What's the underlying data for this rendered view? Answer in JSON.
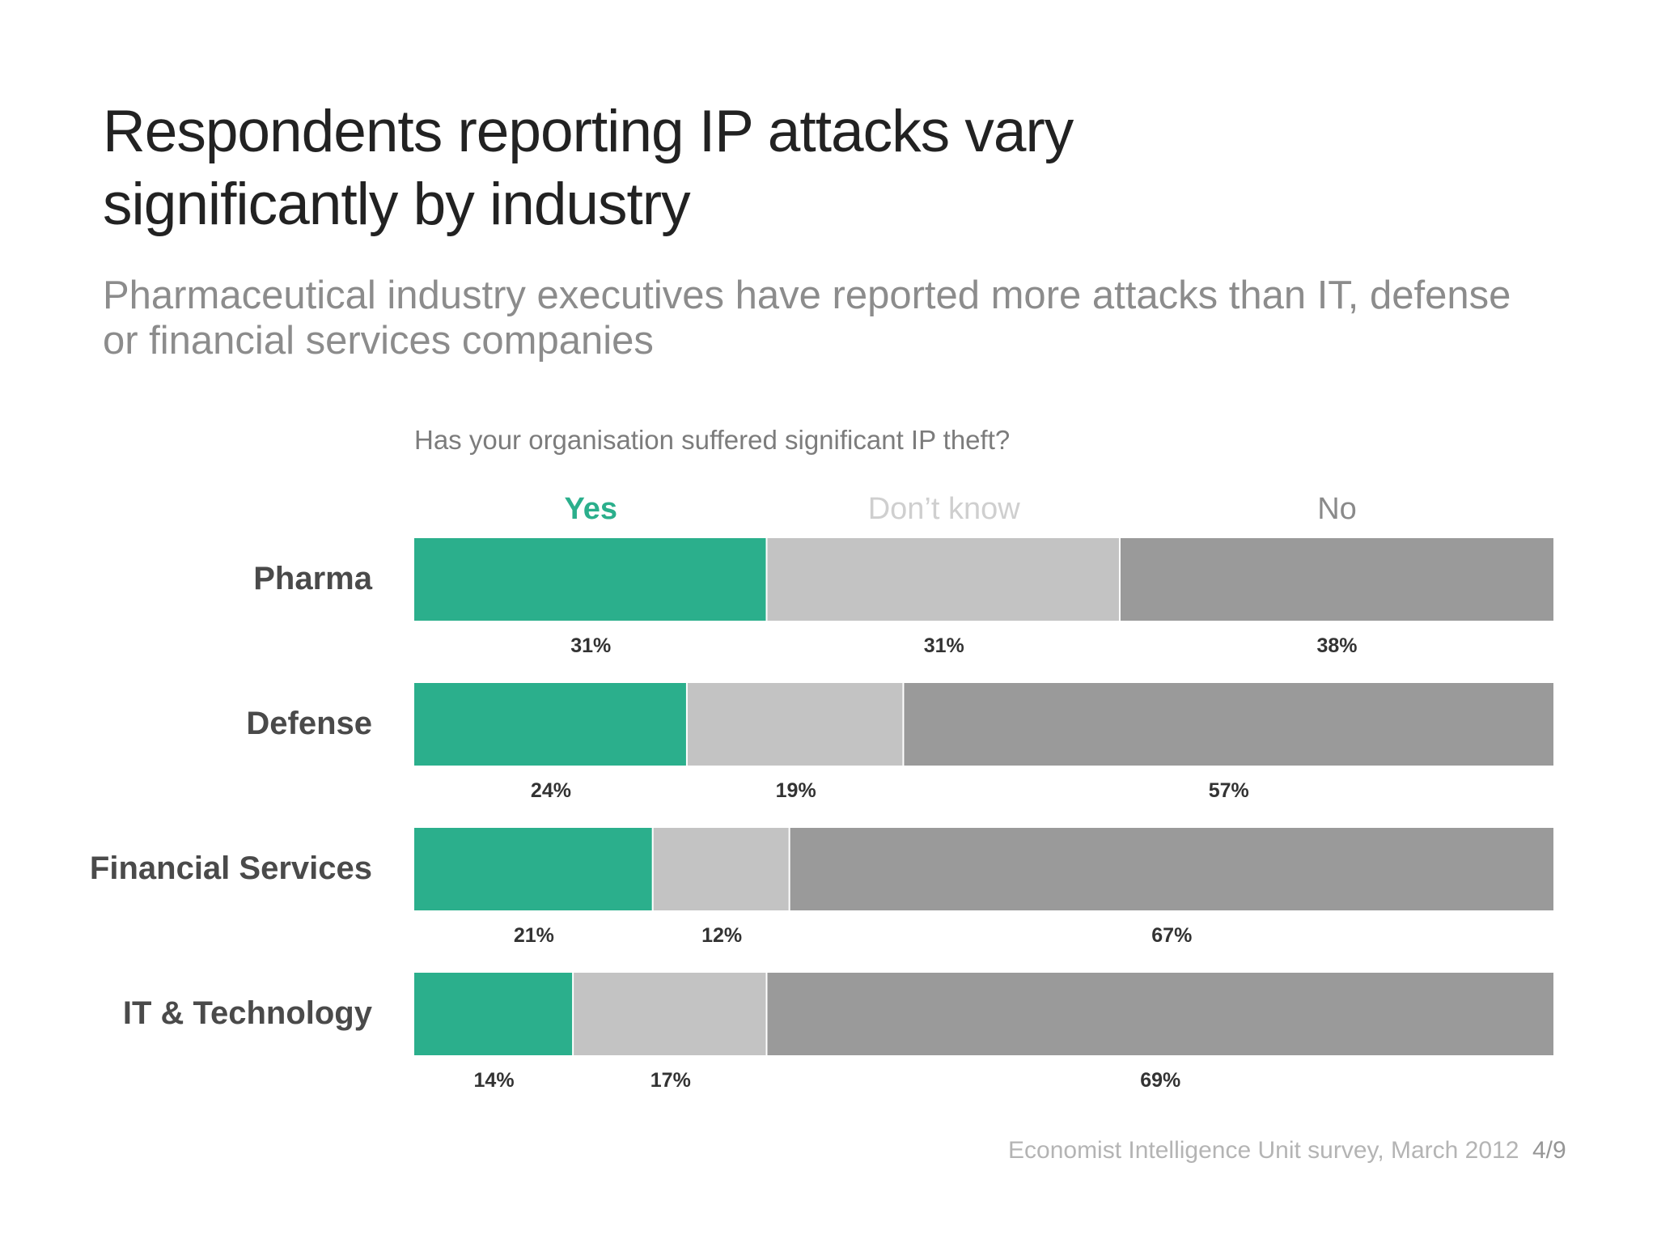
{
  "slide": {
    "title_line_1": "Respondents reporting IP attacks vary",
    "title_line_2": "significantly by industry",
    "subtitle_line_1": "Pharmaceutical industry executives have reported more attacks than IT, defense",
    "subtitle_line_2": "or financial services companies",
    "source": "Economist Intelligence Unit survey, March 2012",
    "page_number": "4/9"
  },
  "chart_data": {
    "type": "bar",
    "orientation": "horizontal",
    "stacked": true,
    "title": "Has your organisation suffered significant IP theft?",
    "xlabel": "",
    "ylabel": "",
    "xlim": [
      0,
      100
    ],
    "unit": "%",
    "grid": false,
    "legend": "top",
    "categories": [
      "Pharma",
      "Defense",
      "Financial Services",
      "IT & Technology"
    ],
    "series": [
      {
        "name": "Yes",
        "color": "#2baf8c",
        "values": [
          31,
          24,
          21,
          14
        ],
        "labels": [
          "31%",
          "24%",
          "21%",
          "14%"
        ]
      },
      {
        "name": "Don’t know",
        "color": "#c3c3c3",
        "values": [
          31,
          19,
          12,
          17
        ],
        "labels": [
          "31%",
          "19%",
          "12%",
          "17%"
        ]
      },
      {
        "name": "No",
        "color": "#9a9a9a",
        "values": [
          38,
          57,
          67,
          69
        ],
        "labels": [
          "38%",
          "57%",
          "67%",
          "69%"
        ]
      }
    ],
    "legend_colors": [
      "#2baf8c",
      "#cfcfcf",
      "#8a8a8a"
    ],
    "category_label_color": "#4a4a4a",
    "value_label_color": "#333333"
  }
}
